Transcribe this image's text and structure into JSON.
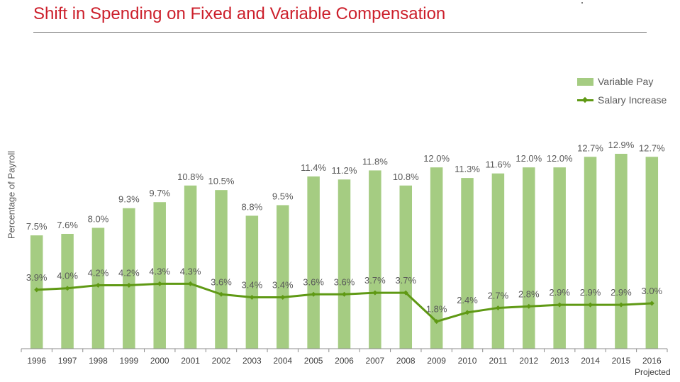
{
  "title": "Shift in Spending on Fixed and Variable Compensation",
  "chart_data": {
    "type": "bar",
    "title": "Shift in Spending on Fixed and Variable Compensation",
    "xlabel": "",
    "ylabel": "Percentage of Payroll",
    "categories": [
      "1996",
      "1997",
      "1998",
      "1999",
      "2000",
      "2001",
      "2002",
      "2003",
      "2004",
      "2005",
      "2006",
      "2007",
      "2008",
      "2009",
      "2010",
      "2011",
      "2012",
      "2013",
      "2014",
      "2015",
      "2016"
    ],
    "category_note": "Projected",
    "ylim": [
      0,
      20
    ],
    "grid": false,
    "legend_position": "top-right",
    "series": [
      {
        "name": "Variable Pay",
        "kind": "bar",
        "color": "#a5cc82",
        "values": [
          7.5,
          7.6,
          8.0,
          9.3,
          9.7,
          10.8,
          10.5,
          8.8,
          9.5,
          11.4,
          11.2,
          11.8,
          10.8,
          12.0,
          11.3,
          11.6,
          12.0,
          12.0,
          12.7,
          12.9,
          12.7
        ],
        "labels": [
          "7.5%",
          "7.6%",
          "8.0%",
          "9.3%",
          "9.7%",
          "10.8%",
          "10.5%",
          "8.8%",
          "9.5%",
          "11.4%",
          "11.2%",
          "11.8%",
          "10.8%",
          "12.0%",
          "11.3%",
          "11.6%",
          "12.0%",
          "12.0%",
          "12.7%",
          "12.9%",
          "12.7%"
        ]
      },
      {
        "name": "Salary Increase",
        "kind": "line",
        "color": "#5f9914",
        "values": [
          3.9,
          4.0,
          4.2,
          4.2,
          4.3,
          4.3,
          3.6,
          3.4,
          3.4,
          3.6,
          3.6,
          3.7,
          3.7,
          1.8,
          2.4,
          2.7,
          2.8,
          2.9,
          2.9,
          2.9,
          3.0
        ],
        "labels": [
          "3.9%",
          "4.0%",
          "4.2%",
          "4.2%",
          "4.3%",
          "4.3%",
          "3.6%",
          "3.4%",
          "3.4%",
          "3.6%",
          "3.6%",
          "3.7%",
          "3.7%",
          "1.8%",
          "2.4%",
          "2.7%",
          "2.8%",
          "2.9%",
          "2.9%",
          "2.9%",
          "3.0%"
        ]
      }
    ]
  }
}
